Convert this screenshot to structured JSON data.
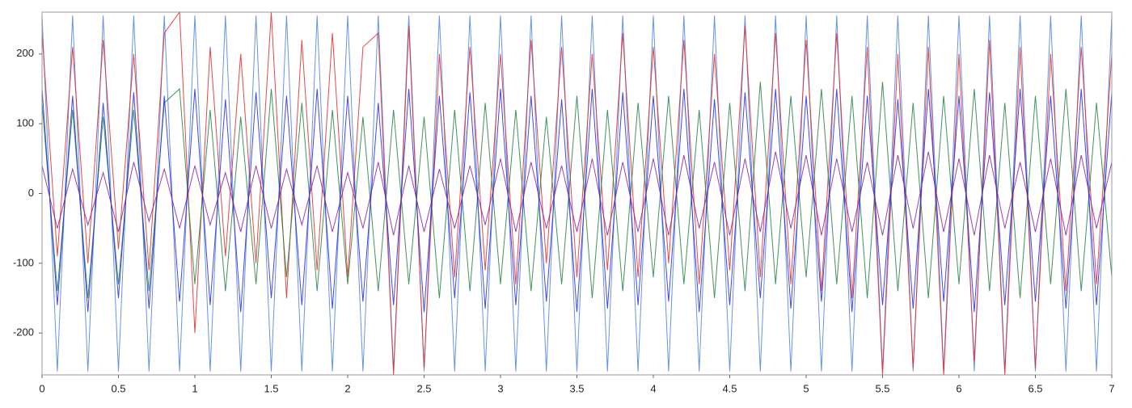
{
  "chart_data": {
    "type": "line",
    "x": [
      0,
      0.1,
      0.2,
      0.3,
      0.4,
      0.5,
      0.6,
      0.7,
      0.8,
      0.9,
      1,
      1.1,
      1.2,
      1.3,
      1.4,
      1.5,
      1.6,
      1.7,
      1.8,
      1.9,
      2,
      2.1,
      2.2,
      2.3,
      2.4,
      2.5,
      2.6,
      2.7,
      2.8,
      2.9,
      3,
      3.1,
      3.2,
      3.3,
      3.4,
      3.5,
      3.6,
      3.7,
      3.8,
      3.9,
      4,
      4.1,
      4.2,
      4.3,
      4.4,
      4.5,
      4.6,
      4.7,
      4.8,
      4.9,
      5,
      5.1,
      5.2,
      5.3,
      5.4,
      5.5,
      5.6,
      5.7,
      5.8,
      5.9,
      6,
      6.1,
      6.2,
      6.3,
      6.4,
      6.5,
      6.6,
      6.7,
      6.8,
      6.9,
      7
    ],
    "series": [
      {
        "color": "#4a80e8",
        "values": [
          255,
          -255,
          255,
          -255,
          255,
          -255,
          255,
          -255,
          255,
          -255,
          255,
          -255,
          255,
          -255,
          255,
          -255,
          255,
          -255,
          255,
          -255,
          255,
          -255,
          255,
          -255,
          255,
          -255,
          255,
          -255,
          255,
          -255,
          255,
          -255,
          255,
          -255,
          255,
          -255,
          255,
          -255,
          255,
          -255,
          255,
          -255,
          255,
          -255,
          255,
          -255,
          255,
          -255,
          255,
          -255,
          255,
          -255,
          255,
          -255,
          255,
          -255,
          255,
          -255,
          255,
          -255,
          255,
          -255,
          255,
          -255,
          255,
          -255,
          255,
          -255,
          255,
          -255,
          255
        ]
      },
      {
        "color": "#e02828",
        "values": [
          230,
          -90,
          210,
          -100,
          220,
          -80,
          200,
          -110,
          230,
          260,
          -200,
          210,
          -90,
          200,
          -100,
          260,
          -150,
          220,
          -110,
          230,
          -120,
          210,
          230,
          -260,
          240,
          -250,
          200,
          -120,
          210,
          -110,
          200,
          -130,
          220,
          -100,
          210,
          -120,
          200,
          -110,
          230,
          -120,
          210,
          -100,
          220,
          -130,
          200,
          -110,
          240,
          -120,
          230,
          -130,
          220,
          -140,
          230,
          -150,
          210,
          -260,
          200,
          -250,
          210,
          -260,
          200,
          -240,
          220,
          -260,
          210,
          -250,
          200,
          -140,
          210,
          -130,
          200
        ]
      },
      {
        "color": "#208040",
        "values": [
          130,
          -140,
          120,
          -150,
          110,
          -130,
          120,
          -140,
          130,
          150,
          -130,
          120,
          -140,
          110,
          -130,
          150,
          -120,
          130,
          -140,
          120,
          -130,
          110,
          -140,
          120,
          -130,
          110,
          -150,
          120,
          -140,
          130,
          -130,
          120,
          -140,
          110,
          -130,
          140,
          -150,
          120,
          -140,
          130,
          -120,
          140,
          -130,
          120,
          -150,
          130,
          -140,
          160,
          -130,
          140,
          -120,
          150,
          -130,
          140,
          -150,
          160,
          -140,
          130,
          -150,
          140,
          -130,
          150,
          -140,
          130,
          -150,
          140,
          -130,
          150,
          -140,
          130,
          -120
        ]
      },
      {
        "color": "#2424e6",
        "values": [
          150,
          -160,
          140,
          -170,
          130,
          -150,
          145,
          -165,
          140,
          -155,
          150,
          -160,
          135,
          -170,
          145,
          -150,
          140,
          -160,
          150,
          -165,
          140,
          -155,
          130,
          -160,
          150,
          -170,
          140,
          -150,
          145,
          -165,
          150,
          -160,
          140,
          -155,
          135,
          -170,
          150,
          -165,
          145,
          -160,
          140,
          -155,
          150,
          -170,
          135,
          -160,
          145,
          -150,
          150,
          -165,
          140,
          -155,
          150,
          -170,
          140,
          -160,
          135,
          -165,
          150,
          -155,
          140,
          -170,
          145,
          -160,
          150,
          -155,
          140,
          -165,
          150,
          -160,
          145
        ]
      },
      {
        "color": "#8a1fa0",
        "values": [
          40,
          -50,
          35,
          -45,
          30,
          -55,
          45,
          -40,
          35,
          -50,
          40,
          -45,
          30,
          -55,
          40,
          -50,
          35,
          -45,
          40,
          -55,
          30,
          -50,
          45,
          -60,
          40,
          -55,
          35,
          -50,
          40,
          -45,
          50,
          -55,
          45,
          -50,
          40,
          -55,
          50,
          -60,
          45,
          -55,
          50,
          -60,
          55,
          -50,
          45,
          -60,
          50,
          -55,
          60,
          -50,
          55,
          -60,
          50,
          -55,
          45,
          -60,
          55,
          -50,
          60,
          -55,
          50,
          -60,
          55,
          -50,
          45,
          -55,
          50,
          -60,
          55,
          -50,
          45
        ]
      }
    ],
    "xlim": [
      0,
      7
    ],
    "xticks": [
      0,
      0.5,
      1,
      1.5,
      2,
      2.5,
      3,
      3.5,
      4,
      4.5,
      5,
      5.5,
      6,
      6.5,
      7
    ],
    "ylim": [
      -260,
      260
    ],
    "yticks": [
      -200,
      -100,
      0,
      100,
      200
    ]
  }
}
